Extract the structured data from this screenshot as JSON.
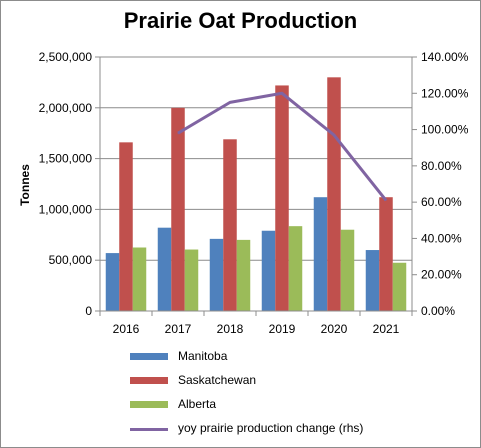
{
  "chart_data": {
    "type": "bar",
    "title": "Prairie Oat Production",
    "ylabel": "Tonnes",
    "categories": [
      "2016",
      "2017",
      "2018",
      "2019",
      "2020",
      "2021"
    ],
    "ylim": [
      0,
      2500000
    ],
    "y_ticks": [
      "0",
      "500,000",
      "1,000,000",
      "1,500,000",
      "2,000,000",
      "2,500,000"
    ],
    "y2lim": [
      0,
      1.4
    ],
    "y2_ticks": [
      "0.00%",
      "20.00%",
      "40.00%",
      "60.00%",
      "80.00%",
      "100.00%",
      "120.00%",
      "140.00%"
    ],
    "grid": true,
    "legend_position": "bottom",
    "series": [
      {
        "name": "Manitoba",
        "color": "#4f81bd",
        "values": [
          570000,
          820000,
          710000,
          790000,
          1120000,
          600000
        ]
      },
      {
        "name": "Saskatchewan",
        "color": "#c0504d",
        "values": [
          1660000,
          2000000,
          1690000,
          2220000,
          2300000,
          1120000
        ]
      },
      {
        "name": "Alberta",
        "color": "#9bbb59",
        "values": [
          625000,
          605000,
          700000,
          835000,
          800000,
          475000
        ]
      }
    ],
    "line_series": {
      "name": "yoy prairie production change (rhs)",
      "color": "#8064a2",
      "axis": "right",
      "values": [
        null,
        0.98,
        1.15,
        1.2,
        0.97,
        0.61
      ]
    }
  }
}
